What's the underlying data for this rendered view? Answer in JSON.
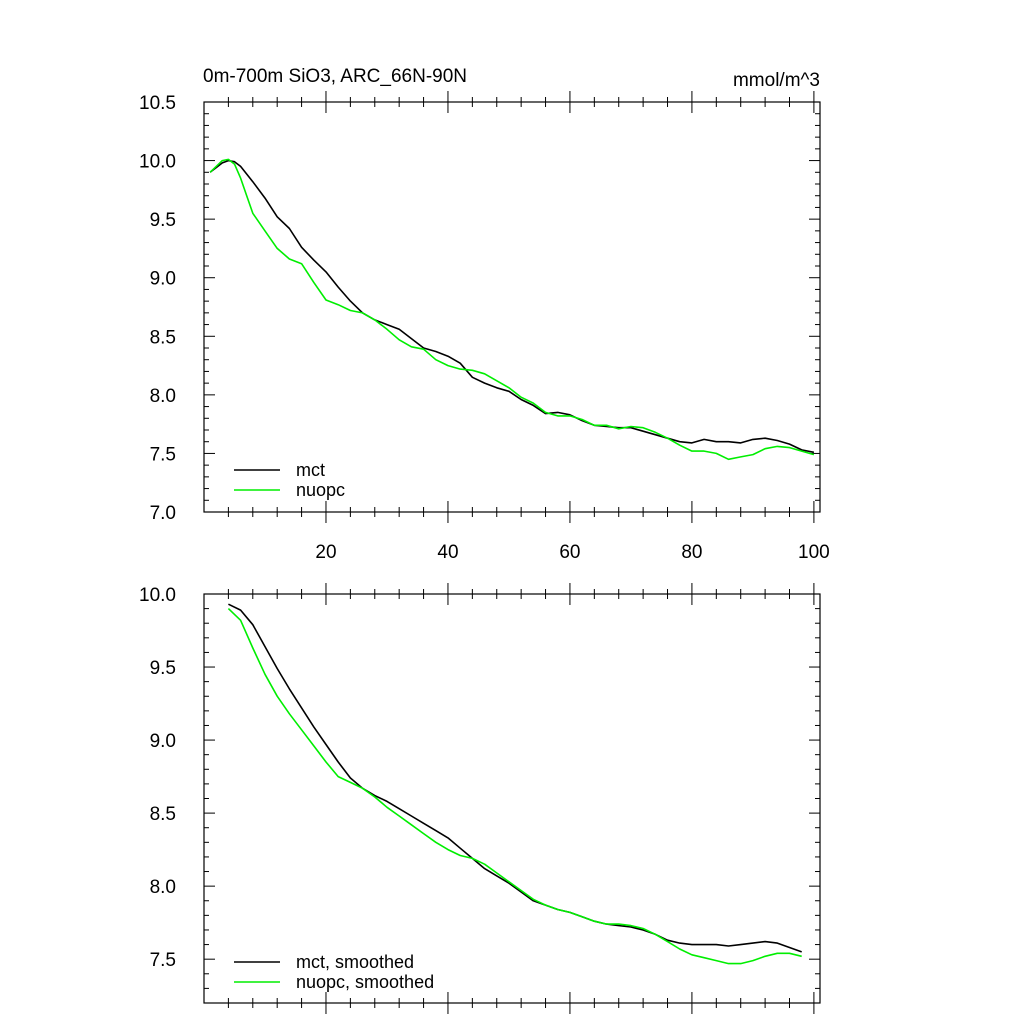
{
  "chart_data": [
    {
      "type": "line",
      "title": "0m-700m SiO3, ARC_66N-90N",
      "units": "mmol/m^3",
      "xlabel": "",
      "ylabel": "",
      "xlim": [
        0,
        101
      ],
      "ylim": [
        7.0,
        10.5
      ],
      "xticks": [
        20,
        40,
        60,
        80,
        100
      ],
      "xtick_labels": [
        "20",
        "40",
        "60",
        "80",
        "100"
      ],
      "yticks": [
        7.0,
        7.5,
        8.0,
        8.5,
        9.0,
        9.5,
        10.0,
        10.5
      ],
      "ytick_labels": [
        "7.0",
        "7.5",
        "8.0",
        "8.5",
        "9.0",
        "9.5",
        "10.0",
        "10.5"
      ],
      "legend": {
        "placement": "bottom-left",
        "entries": [
          "mct",
          "nuopc"
        ]
      },
      "series": [
        {
          "name": "mct",
          "color": "#000000",
          "x": [
            1,
            2,
            3,
            4,
            5,
            6,
            8,
            10,
            12,
            14,
            16,
            18,
            20,
            22,
            24,
            26,
            28,
            30,
            32,
            34,
            36,
            38,
            40,
            42,
            44,
            46,
            48,
            50,
            52,
            54,
            56,
            58,
            60,
            62,
            64,
            66,
            68,
            70,
            72,
            74,
            76,
            78,
            80,
            82,
            84,
            86,
            88,
            90,
            92,
            94,
            96,
            98,
            100
          ],
          "values": [
            9.9,
            9.94,
            9.98,
            10.0,
            9.99,
            9.95,
            9.82,
            9.68,
            9.52,
            9.42,
            9.26,
            9.15,
            9.05,
            8.92,
            8.8,
            8.7,
            8.64,
            8.6,
            8.56,
            8.48,
            8.4,
            8.37,
            8.33,
            8.27,
            8.15,
            8.1,
            8.06,
            8.03,
            7.96,
            7.91,
            7.84,
            7.85,
            7.83,
            7.78,
            7.74,
            7.73,
            7.72,
            7.72,
            7.69,
            7.66,
            7.63,
            7.6,
            7.59,
            7.62,
            7.6,
            7.6,
            7.59,
            7.62,
            7.63,
            7.61,
            7.58,
            7.53,
            7.51
          ]
        },
        {
          "name": "nuopc",
          "color": "#00ee00",
          "x": [
            1,
            2,
            3,
            4,
            5,
            6,
            7,
            8,
            10,
            12,
            14,
            16,
            18,
            20,
            22,
            24,
            26,
            28,
            30,
            32,
            34,
            36,
            38,
            40,
            42,
            44,
            46,
            48,
            50,
            52,
            54,
            56,
            58,
            60,
            62,
            64,
            66,
            68,
            70,
            72,
            74,
            76,
            78,
            80,
            82,
            84,
            86,
            88,
            90,
            92,
            94,
            96,
            98,
            100
          ],
          "values": [
            9.9,
            9.95,
            10.0,
            10.01,
            9.97,
            9.85,
            9.7,
            9.55,
            9.4,
            9.25,
            9.16,
            9.12,
            8.96,
            8.81,
            8.77,
            8.72,
            8.7,
            8.64,
            8.56,
            8.47,
            8.41,
            8.39,
            8.3,
            8.25,
            8.22,
            8.21,
            8.18,
            8.12,
            8.06,
            7.98,
            7.93,
            7.85,
            7.82,
            7.82,
            7.79,
            7.74,
            7.74,
            7.71,
            7.73,
            7.72,
            7.68,
            7.63,
            7.57,
            7.52,
            7.52,
            7.5,
            7.45,
            7.47,
            7.49,
            7.54,
            7.56,
            7.55,
            7.52,
            7.49
          ]
        }
      ]
    },
    {
      "type": "line",
      "title": "",
      "xlabel": "",
      "ylabel": "",
      "xlim": [
        0,
        101
      ],
      "ylim": [
        7.2,
        10.0
      ],
      "xticks": [
        20,
        40,
        60,
        80,
        100
      ],
      "xtick_labels": [],
      "yticks": [
        7.5,
        8.0,
        8.5,
        9.0,
        9.5,
        10.0
      ],
      "ytick_labels": [
        "7.5",
        "8.0",
        "8.5",
        "9.0",
        "9.5",
        "10.0"
      ],
      "legend": {
        "placement": "bottom-left",
        "entries": [
          "mct, smoothed",
          "nuopc, smoothed"
        ]
      },
      "series": [
        {
          "name": "mct, smoothed",
          "color": "#000000",
          "x": [
            4,
            6,
            8,
            10,
            12,
            14,
            16,
            18,
            20,
            22,
            24,
            26,
            28,
            30,
            32,
            34,
            36,
            38,
            40,
            42,
            44,
            46,
            48,
            50,
            52,
            54,
            56,
            58,
            60,
            62,
            64,
            66,
            68,
            70,
            72,
            74,
            76,
            78,
            80,
            82,
            84,
            86,
            88,
            90,
            92,
            94,
            96,
            98
          ],
          "values": [
            9.93,
            9.89,
            9.79,
            9.64,
            9.49,
            9.35,
            9.22,
            9.09,
            8.97,
            8.85,
            8.74,
            8.67,
            8.62,
            8.58,
            8.53,
            8.48,
            8.43,
            8.38,
            8.33,
            8.26,
            8.19,
            8.12,
            8.07,
            8.02,
            7.96,
            7.9,
            7.87,
            7.84,
            7.82,
            7.79,
            7.76,
            7.74,
            7.73,
            7.72,
            7.7,
            7.67,
            7.63,
            7.61,
            7.6,
            7.6,
            7.6,
            7.59,
            7.6,
            7.61,
            7.62,
            7.61,
            7.58,
            7.55
          ]
        },
        {
          "name": "nuopc, smoothed",
          "color": "#00ee00",
          "x": [
            4,
            6,
            8,
            10,
            12,
            14,
            16,
            18,
            20,
            22,
            24,
            26,
            28,
            30,
            32,
            34,
            36,
            38,
            40,
            42,
            44,
            46,
            48,
            50,
            52,
            54,
            56,
            58,
            60,
            62,
            64,
            66,
            68,
            70,
            72,
            74,
            76,
            78,
            80,
            82,
            84,
            86,
            88,
            90,
            92,
            94,
            96,
            98
          ],
          "values": [
            9.9,
            9.82,
            9.63,
            9.45,
            9.3,
            9.18,
            9.07,
            8.96,
            8.85,
            8.75,
            8.71,
            8.67,
            8.61,
            8.54,
            8.48,
            8.42,
            8.36,
            8.3,
            8.25,
            8.21,
            8.19,
            8.15,
            8.09,
            8.03,
            7.97,
            7.91,
            7.87,
            7.84,
            7.82,
            7.79,
            7.76,
            7.74,
            7.74,
            7.73,
            7.71,
            7.67,
            7.62,
            7.57,
            7.53,
            7.51,
            7.49,
            7.47,
            7.47,
            7.49,
            7.52,
            7.54,
            7.54,
            7.52
          ]
        }
      ]
    }
  ]
}
